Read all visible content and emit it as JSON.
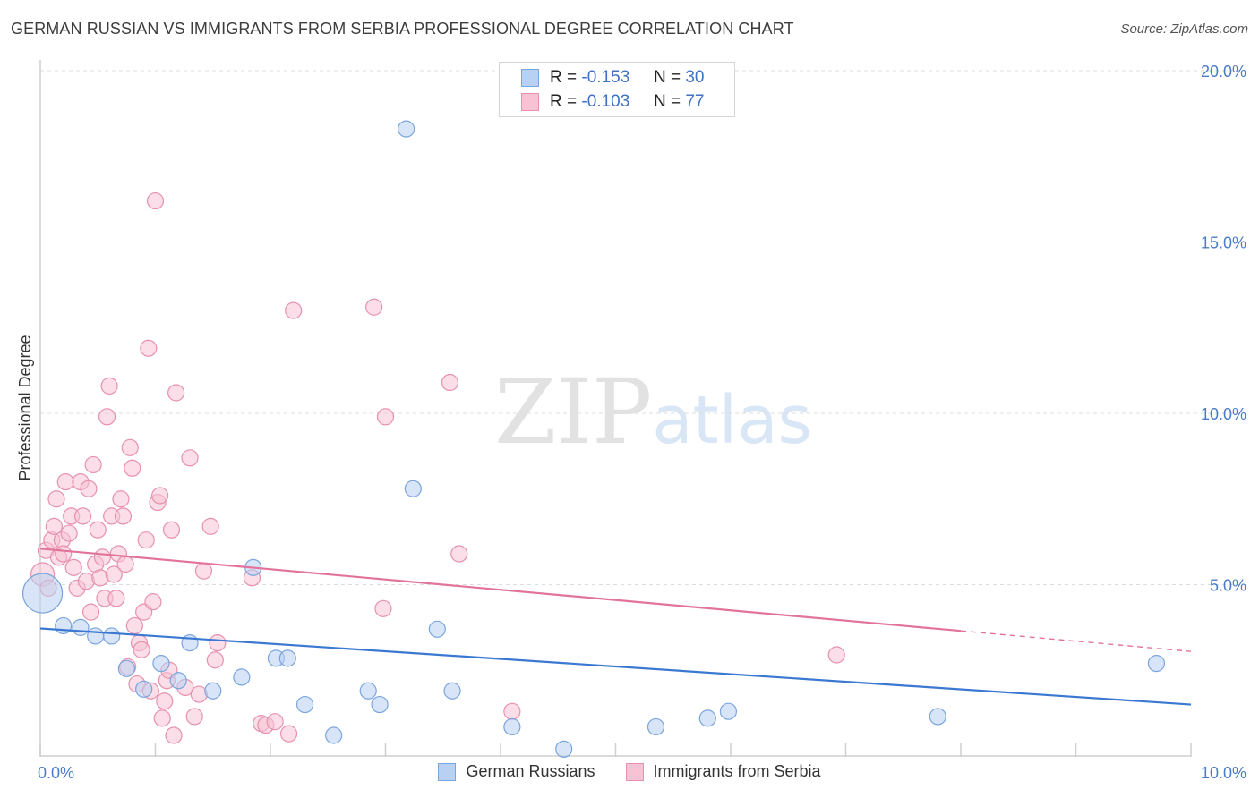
{
  "title": "GERMAN RUSSIAN VS IMMIGRANTS FROM SERBIA PROFESSIONAL DEGREE CORRELATION CHART",
  "source": "Source: ZipAtlas.com",
  "watermark": {
    "zip": "ZIP",
    "atlas": "atlas"
  },
  "legend": {
    "rows": [
      {
        "r_label": "R =",
        "r_value": "-0.153",
        "n_label": "N =",
        "n_value": "30"
      },
      {
        "r_label": "R =",
        "r_value": "-0.103",
        "n_label": "N =",
        "n_value": "77"
      }
    ]
  },
  "colors": {
    "blue_fill": "#b8d0f2",
    "blue_stroke": "#7aa5dd",
    "blue_line": "#3a78d2",
    "pink_fill": "#f7c2d3",
    "pink_stroke": "#e791ae",
    "pink_line": "#e2739b",
    "grid": "#dddddd",
    "tick_text": "#4a7cc9"
  },
  "chart_data": {
    "type": "scatter",
    "title": "GERMAN RUSSIAN VS IMMIGRANTS FROM SERBIA PROFESSIONAL DEGREE CORRELATION CHART",
    "xlabel": "",
    "ylabel": "Professional Degree",
    "xlim": [
      0,
      10
    ],
    "ylim": [
      0,
      20
    ],
    "x_tick_labels": [
      "0.0%",
      "10.0%"
    ],
    "y_ticks": [
      5,
      10,
      15,
      20
    ],
    "y_tick_labels": [
      "5.0%",
      "10.0%",
      "15.0%",
      "20.0%"
    ],
    "series": [
      {
        "name": "German Russians",
        "color": "blue",
        "R": -0.153,
        "N": 30,
        "trend": {
          "x0": 0,
          "y0": 3.72,
          "x1": 10,
          "y1": 1.5,
          "dash_from": null
        },
        "points": [
          [
            0.02,
            4.75,
            22
          ],
          [
            0.2,
            3.8,
            9
          ],
          [
            0.35,
            3.75,
            9
          ],
          [
            0.48,
            3.5,
            9
          ],
          [
            0.62,
            3.5,
            9
          ],
          [
            0.75,
            2.55,
            9
          ],
          [
            0.9,
            1.95,
            9
          ],
          [
            1.05,
            2.7,
            9
          ],
          [
            1.2,
            2.2,
            9
          ],
          [
            1.3,
            3.3,
            9
          ],
          [
            1.5,
            1.9,
            9
          ],
          [
            1.75,
            2.3,
            9
          ],
          [
            1.85,
            5.5,
            9
          ],
          [
            2.05,
            2.85,
            9
          ],
          [
            2.15,
            2.85,
            9
          ],
          [
            2.3,
            1.5,
            9
          ],
          [
            2.55,
            0.6,
            9
          ],
          [
            2.85,
            1.9,
            9
          ],
          [
            2.95,
            1.5,
            9
          ],
          [
            3.18,
            18.3,
            9
          ],
          [
            3.24,
            7.8,
            9
          ],
          [
            3.45,
            3.7,
            9
          ],
          [
            3.58,
            1.9,
            9
          ],
          [
            4.1,
            0.85,
            9
          ],
          [
            4.55,
            0.2,
            9
          ],
          [
            5.35,
            0.85,
            9
          ],
          [
            5.8,
            1.1,
            9
          ],
          [
            5.98,
            1.3,
            9
          ],
          [
            7.8,
            1.15,
            9
          ],
          [
            9.7,
            2.7,
            9
          ]
        ]
      },
      {
        "name": "Immigrants from Serbia",
        "color": "pink",
        "R": -0.103,
        "N": 77,
        "trend": {
          "x0": 0,
          "y0": 6.05,
          "x1": 10,
          "y1": 3.05,
          "dash_from": 8.0
        },
        "points": [
          [
            0.02,
            5.3,
            13
          ],
          [
            0.05,
            6.0,
            9
          ],
          [
            0.07,
            4.9,
            9
          ],
          [
            0.1,
            6.3,
            9
          ],
          [
            0.12,
            6.7,
            9
          ],
          [
            0.14,
            7.5,
            9
          ],
          [
            0.16,
            5.8,
            9
          ],
          [
            0.19,
            6.3,
            9
          ],
          [
            0.2,
            5.9,
            9
          ],
          [
            0.22,
            8.0,
            9
          ],
          [
            0.25,
            6.5,
            9
          ],
          [
            0.27,
            7.0,
            9
          ],
          [
            0.29,
            5.5,
            9
          ],
          [
            0.32,
            4.9,
            9
          ],
          [
            0.35,
            8.0,
            9
          ],
          [
            0.37,
            7.0,
            9
          ],
          [
            0.4,
            5.1,
            9
          ],
          [
            0.42,
            7.8,
            9
          ],
          [
            0.44,
            4.2,
            9
          ],
          [
            0.46,
            8.5,
            9
          ],
          [
            0.48,
            5.6,
            9
          ],
          [
            0.5,
            6.6,
            9
          ],
          [
            0.52,
            5.2,
            9
          ],
          [
            0.54,
            5.8,
            9
          ],
          [
            0.56,
            4.6,
            9
          ],
          [
            0.58,
            9.9,
            9
          ],
          [
            0.6,
            10.8,
            9
          ],
          [
            0.62,
            7.0,
            9
          ],
          [
            0.64,
            5.3,
            9
          ],
          [
            0.66,
            4.6,
            9
          ],
          [
            0.68,
            5.9,
            9
          ],
          [
            0.7,
            7.5,
            9
          ],
          [
            0.72,
            7.0,
            9
          ],
          [
            0.74,
            5.6,
            9
          ],
          [
            0.76,
            2.6,
            9
          ],
          [
            0.78,
            9.0,
            9
          ],
          [
            0.8,
            8.4,
            9
          ],
          [
            0.82,
            3.8,
            9
          ],
          [
            0.84,
            2.1,
            9
          ],
          [
            0.86,
            3.3,
            9
          ],
          [
            0.88,
            3.1,
            9
          ],
          [
            0.9,
            4.2,
            9
          ],
          [
            0.92,
            6.3,
            9
          ],
          [
            0.94,
            11.9,
            9
          ],
          [
            0.96,
            1.9,
            9
          ],
          [
            0.98,
            4.5,
            9
          ],
          [
            1.0,
            16.2,
            9
          ],
          [
            1.02,
            7.4,
            9
          ],
          [
            1.04,
            7.6,
            9
          ],
          [
            1.06,
            1.1,
            9
          ],
          [
            1.08,
            1.6,
            9
          ],
          [
            1.1,
            2.2,
            9
          ],
          [
            1.12,
            2.5,
            9
          ],
          [
            1.14,
            6.6,
            9
          ],
          [
            1.16,
            0.6,
            9
          ],
          [
            1.18,
            10.6,
            9
          ],
          [
            1.26,
            2.0,
            9
          ],
          [
            1.3,
            8.7,
            9
          ],
          [
            1.34,
            1.15,
            9
          ],
          [
            1.38,
            1.8,
            9
          ],
          [
            1.42,
            5.4,
            9
          ],
          [
            1.48,
            6.7,
            9
          ],
          [
            1.52,
            2.8,
            9
          ],
          [
            1.54,
            3.3,
            9
          ],
          [
            1.84,
            5.2,
            9
          ],
          [
            1.92,
            0.95,
            9
          ],
          [
            1.96,
            0.9,
            9
          ],
          [
            2.04,
            1.0,
            9
          ],
          [
            2.16,
            0.65,
            9
          ],
          [
            2.2,
            13.0,
            9
          ],
          [
            2.9,
            13.1,
            9
          ],
          [
            2.98,
            4.3,
            9
          ],
          [
            3.0,
            9.9,
            9
          ],
          [
            3.56,
            10.9,
            9
          ],
          [
            3.64,
            5.9,
            9
          ],
          [
            4.1,
            1.3,
            9
          ],
          [
            6.92,
            2.95,
            9
          ]
        ]
      }
    ],
    "legend_position": "top-center",
    "bottom_legend": [
      "German Russians",
      "Immigrants from Serbia"
    ]
  }
}
